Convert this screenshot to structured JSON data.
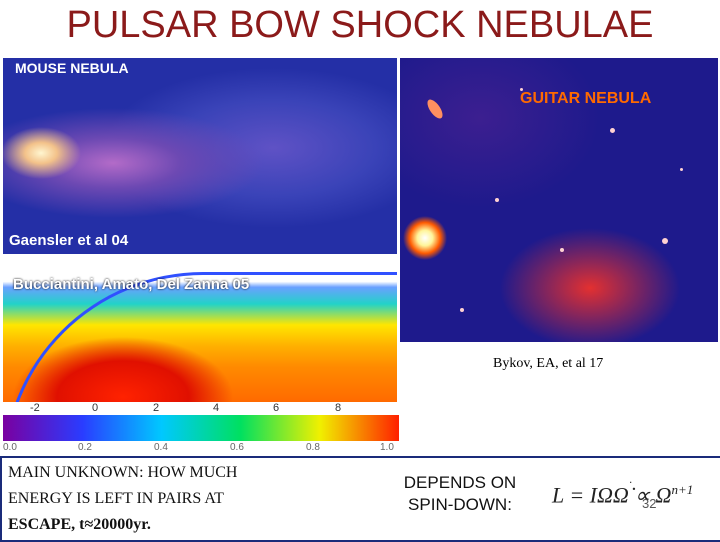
{
  "title": "PULSAR BOW SHOCK NEBULAE",
  "mouse_panel": {
    "label": "MOUSE NEBULA",
    "credit": "Gaensler et al 04"
  },
  "guitar_panel": {
    "label": "GUITAR NEBULA",
    "credit": "Bykov, EA, et al 17"
  },
  "sim_panel": {
    "credit": "Bucciantini, Amato, Del Zanna 05",
    "axis_ticks": [
      "-2",
      "0",
      "2",
      "4",
      "6",
      "8"
    ]
  },
  "colorbar": {
    "ticks": [
      "0.0",
      "0.2",
      "0.4",
      "0.6",
      "0.8",
      "1.0"
    ]
  },
  "text_block": {
    "line1": "MAIN UNKNOWN: HOW MUCH",
    "line2": "ENERGY IS LEFT IN PAIRS AT",
    "line3": "ESCAPE, t≈20000yr."
  },
  "depends": {
    "line1": "DEPENDS ON",
    "line2": "SPIN-DOWN:"
  },
  "formula": {
    "lhs": "L = IΩΩ̇ ∝ Ω",
    "exponent": "n+1",
    "dot": "."
  },
  "slide_number": "32",
  "colors": {
    "title": "#8b1a1a",
    "box_border": "#1a2b7a",
    "guitar_label": "#ff6a00",
    "credit_white": "#ffffff"
  }
}
